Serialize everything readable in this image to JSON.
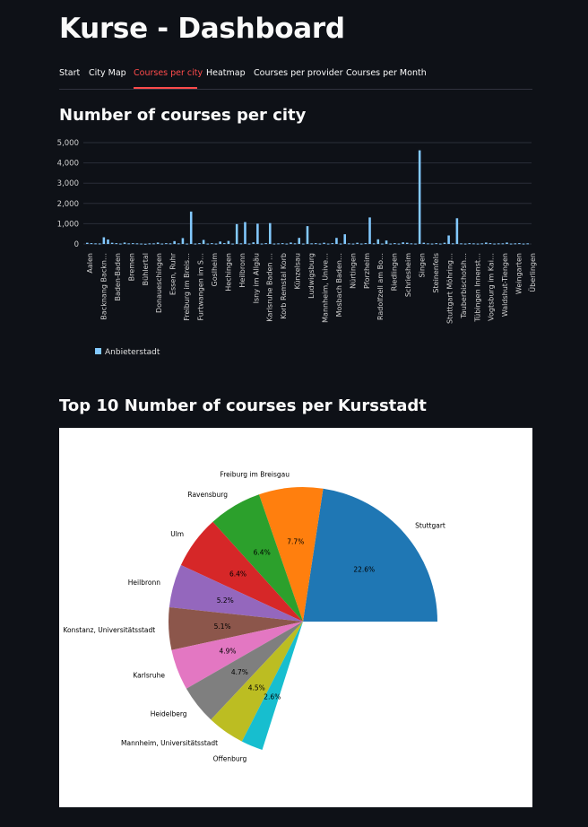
{
  "app": {
    "title": "Kurse - Dashboard"
  },
  "tabs": [
    {
      "label": "Start"
    },
    {
      "label": "City Map"
    },
    {
      "label": "Courses per city",
      "active": true
    },
    {
      "label": "Heatmap"
    },
    {
      "label": "Courses per provider"
    },
    {
      "label": "Courses per Month"
    }
  ],
  "colors": {
    "accent": "#ff4b4b",
    "bar": "#83c9ff",
    "background": "#0e1117"
  },
  "sections": {
    "bar_title": "Number of courses per city",
    "pie_title": "Top 10 Number of courses per Kursstadt"
  },
  "chart_data": [
    {
      "type": "bar",
      "title": "Number of courses per city",
      "ylim": [
        0,
        5000
      ],
      "yticks": [
        "0",
        "1,000",
        "2,000",
        "3,000",
        "4,000",
        "5,000"
      ],
      "grid": true,
      "legend": {
        "label": "Anbieterstadt",
        "position": "bottom-left"
      },
      "tick_labels": [
        "Aalen",
        "Backnang Backn…",
        "Baden-Baden",
        "Bremen",
        "Bühlertal",
        "Donaueschingen",
        "Essen, Ruhr",
        "Freiburg im Breis…",
        "Furtwangen im S…",
        "Goslheim",
        "Hechingen",
        "Heilbronn",
        "Isny im Allgäu",
        "Karlsruhe Baden …",
        "Korb Remstal Korb",
        "Künzelsau",
        "Ludwigsburg",
        "Mannheim, Unive…",
        "Mosbach Baden…",
        "Nürtingen",
        "Pforzheim",
        "Radolfzell am Bo…",
        "Riedlingen",
        "Schriesheim",
        "Singen",
        "Steinenfels",
        "Stuttgart Möhring…",
        "Tauberbischofsh…",
        "Tübingen Innenst…",
        "Vogtsburg im Kai…",
        "Waldshut-Tiengen",
        "Weingarten",
        "Überlingen"
      ],
      "values": [
        60,
        40,
        30,
        25,
        330,
        220,
        60,
        40,
        20,
        70,
        30,
        40,
        30,
        20,
        10,
        30,
        30,
        70,
        20,
        40,
        30,
        140,
        30,
        290,
        20,
        1600,
        20,
        40,
        200,
        20,
        40,
        20,
        120,
        40,
        150,
        20,
        980,
        30,
        1080,
        20,
        80,
        1000,
        20,
        40,
        1030,
        20,
        30,
        40,
        20,
        70,
        30,
        300,
        20,
        880,
        30,
        40,
        20,
        60,
        20,
        40,
        300,
        20,
        480,
        30,
        20,
        60,
        20,
        40,
        1310,
        30,
        230,
        20,
        170,
        20,
        40,
        20,
        80,
        60,
        30,
        20,
        4620,
        60,
        30,
        20,
        40,
        20,
        60,
        420,
        30,
        1270,
        30,
        20,
        40,
        30,
        20,
        30,
        70,
        40,
        20,
        30,
        30,
        70,
        20,
        30,
        40,
        20,
        30
      ]
    },
    {
      "type": "pie",
      "title": "Top 10 Number of courses per Kursstadt",
      "slices": [
        {
          "label": "Stuttgart",
          "value": 22.6,
          "pct": "22.6%",
          "color": "#1f77b4"
        },
        {
          "label": "Freiburg im Breisgau",
          "value": 7.7,
          "pct": "7.7%",
          "color": "#ff7f0e"
        },
        {
          "label": "Ravensburg",
          "value": 6.4,
          "pct": "6.4%",
          "color": "#2ca02c"
        },
        {
          "label": "Ulm",
          "value": 6.4,
          "pct": "6.4%",
          "color": "#d62728"
        },
        {
          "label": "Heilbronn",
          "value": 5.2,
          "pct": "5.2%",
          "color": "#9467bd"
        },
        {
          "label": "Konstanz, Universitätsstadt",
          "value": 5.1,
          "pct": "5.1%",
          "color": "#8c564b"
        },
        {
          "label": "Karlsruhe",
          "value": 4.9,
          "pct": "4.9%",
          "color": "#e377c2"
        },
        {
          "label": "Heidelberg",
          "value": 4.7,
          "pct": "4.7%",
          "color": "#7f7f7f"
        },
        {
          "label": "Mannheim, Universitätsstadt",
          "value": 4.5,
          "pct": "4.5%",
          "color": "#bcbd22"
        },
        {
          "label": "Offenburg",
          "value": 2.6,
          "pct": "2.6%",
          "color": "#17becf"
        }
      ]
    }
  ]
}
